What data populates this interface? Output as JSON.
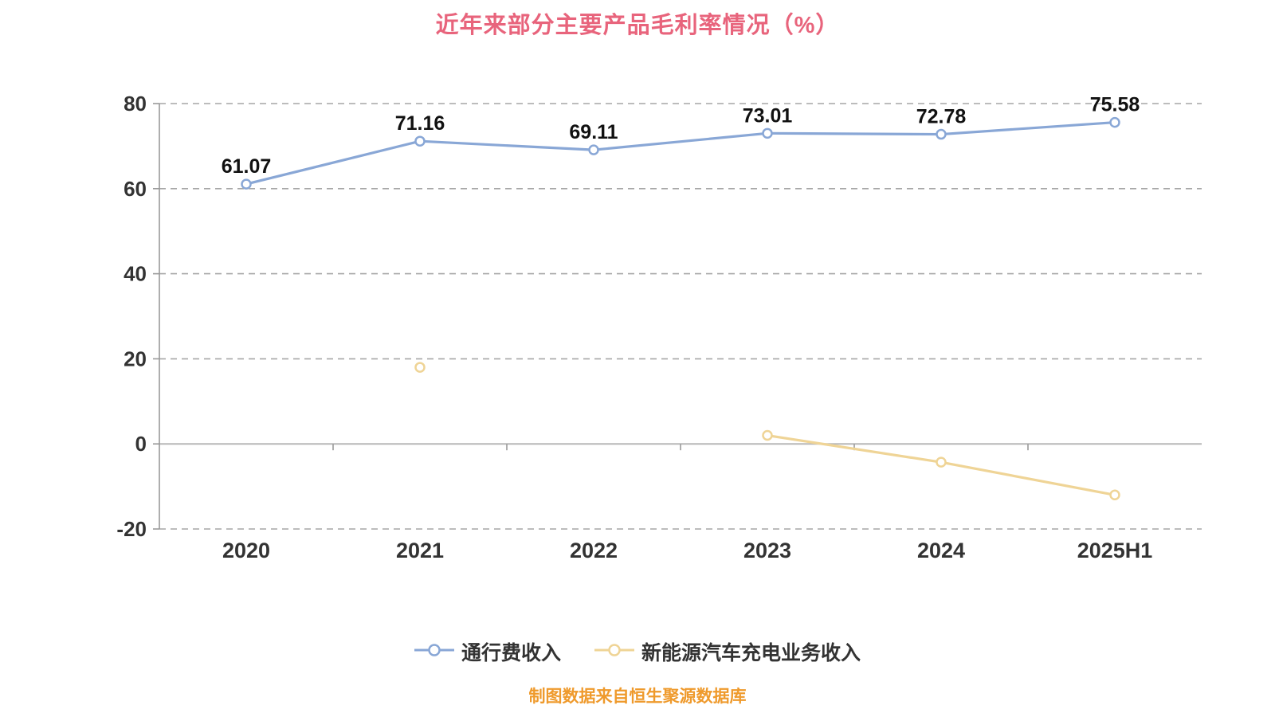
{
  "chart_data": {
    "type": "line",
    "title": "近年来部分主要产品毛利率情况（%）",
    "categories": [
      "2020",
      "2021",
      "2022",
      "2023",
      "2024",
      "2025H1"
    ],
    "series": [
      {
        "name": "通行费收入",
        "color": "#89a7d6",
        "values": [
          61.07,
          71.16,
          69.11,
          73.01,
          72.78,
          75.58
        ],
        "labels": [
          "61.07",
          "71.16",
          "69.11",
          "73.01",
          "72.78",
          "75.58"
        ]
      },
      {
        "name": "新能源汽车充电业务收入",
        "color": "#efd496",
        "values": [
          null,
          18,
          null,
          2,
          -4.3,
          -12
        ],
        "labels": [
          null,
          null,
          null,
          null,
          null,
          null
        ]
      }
    ],
    "ylim": [
      -20,
      80
    ],
    "yticks": [
      -20,
      0,
      20,
      40,
      60,
      80
    ],
    "grid": "horizontal dashed",
    "legend_position": "bottom"
  },
  "footer": {
    "source_note": "制图数据来自恒生聚源数据库"
  },
  "colors": {
    "title": "#e8647c",
    "footer": "#ef9a2c",
    "gridline": "#a6a6a6",
    "zero_line": "#b8b8b8",
    "axis": "#999999",
    "marker_fill": "#ffffff"
  }
}
